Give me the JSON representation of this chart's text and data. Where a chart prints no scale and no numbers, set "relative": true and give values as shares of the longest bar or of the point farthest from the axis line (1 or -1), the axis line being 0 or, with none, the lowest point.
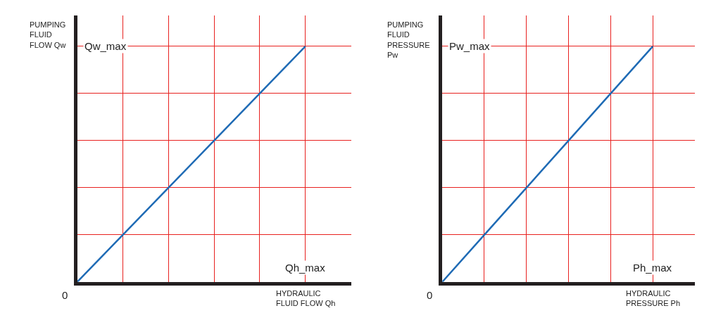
{
  "chart_data": [
    {
      "type": "line",
      "relative": true,
      "ylabel": "PUMPING\nFLUID\nFLOW Qw",
      "xlabel": "HYDRAULIC\nFLUID FLOW Qh",
      "categories": [
        null,
        null,
        null,
        null,
        null,
        null
      ],
      "series": [
        {
          "color": "#1f6bb5",
          "values": [
            0,
            0.2,
            0.4,
            0.6,
            0.8,
            1
          ]
        }
      ],
      "annotations": [
        "0",
        "Qw_max",
        "Qh_max"
      ],
      "grid": true,
      "marker": "none",
      "line_style": "solid"
    },
    {
      "type": "line",
      "relative": true,
      "ylabel": "PUMPING\nFLUID\nPRESSURE\nPw",
      "xlabel": "HYDRAULIC\nPRESSURE Ph",
      "categories": [
        null,
        null,
        null,
        null,
        null,
        null
      ],
      "series": [
        {
          "color": "#1f6bb5",
          "values": [
            0,
            0.2,
            0.4,
            0.6,
            0.8,
            1
          ]
        }
      ],
      "annotations": [
        "0",
        "Pw_max",
        "Ph_max"
      ],
      "grid": true,
      "marker": "none",
      "line_style": "solid"
    }
  ]
}
